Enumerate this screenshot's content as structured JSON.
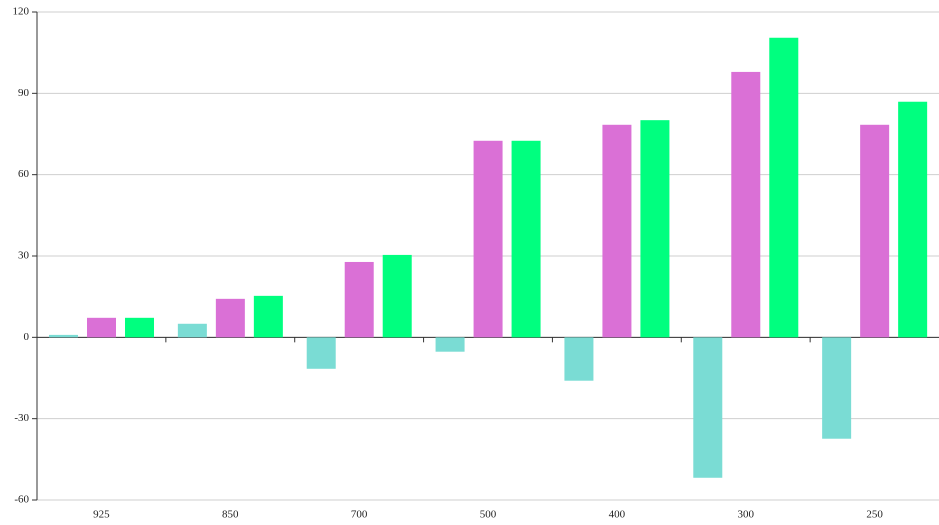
{
  "chart_data": {
    "type": "bar",
    "categories": [
      "925",
      "850",
      "700",
      "500",
      "400",
      "300",
      "250"
    ],
    "series": [
      {
        "color": "#7adcd4",
        "values": [
          0.9,
          5,
          -11.6,
          -5.3,
          -16,
          -51.8,
          -37.4
        ]
      },
      {
        "color": "#da70d6",
        "values": [
          7.2,
          14.2,
          27.8,
          72.5,
          78.4,
          97.9,
          78.4
        ]
      },
      {
        "color": "#00ff7f",
        "values": [
          7.2,
          15.3,
          30.4,
          72.5,
          80.1,
          110.5,
          86.9
        ]
      }
    ],
    "ylim": [
      -60,
      120
    ],
    "yticks": [
      -60,
      -30,
      0,
      30,
      60,
      90,
      120
    ],
    "grid": true
  }
}
